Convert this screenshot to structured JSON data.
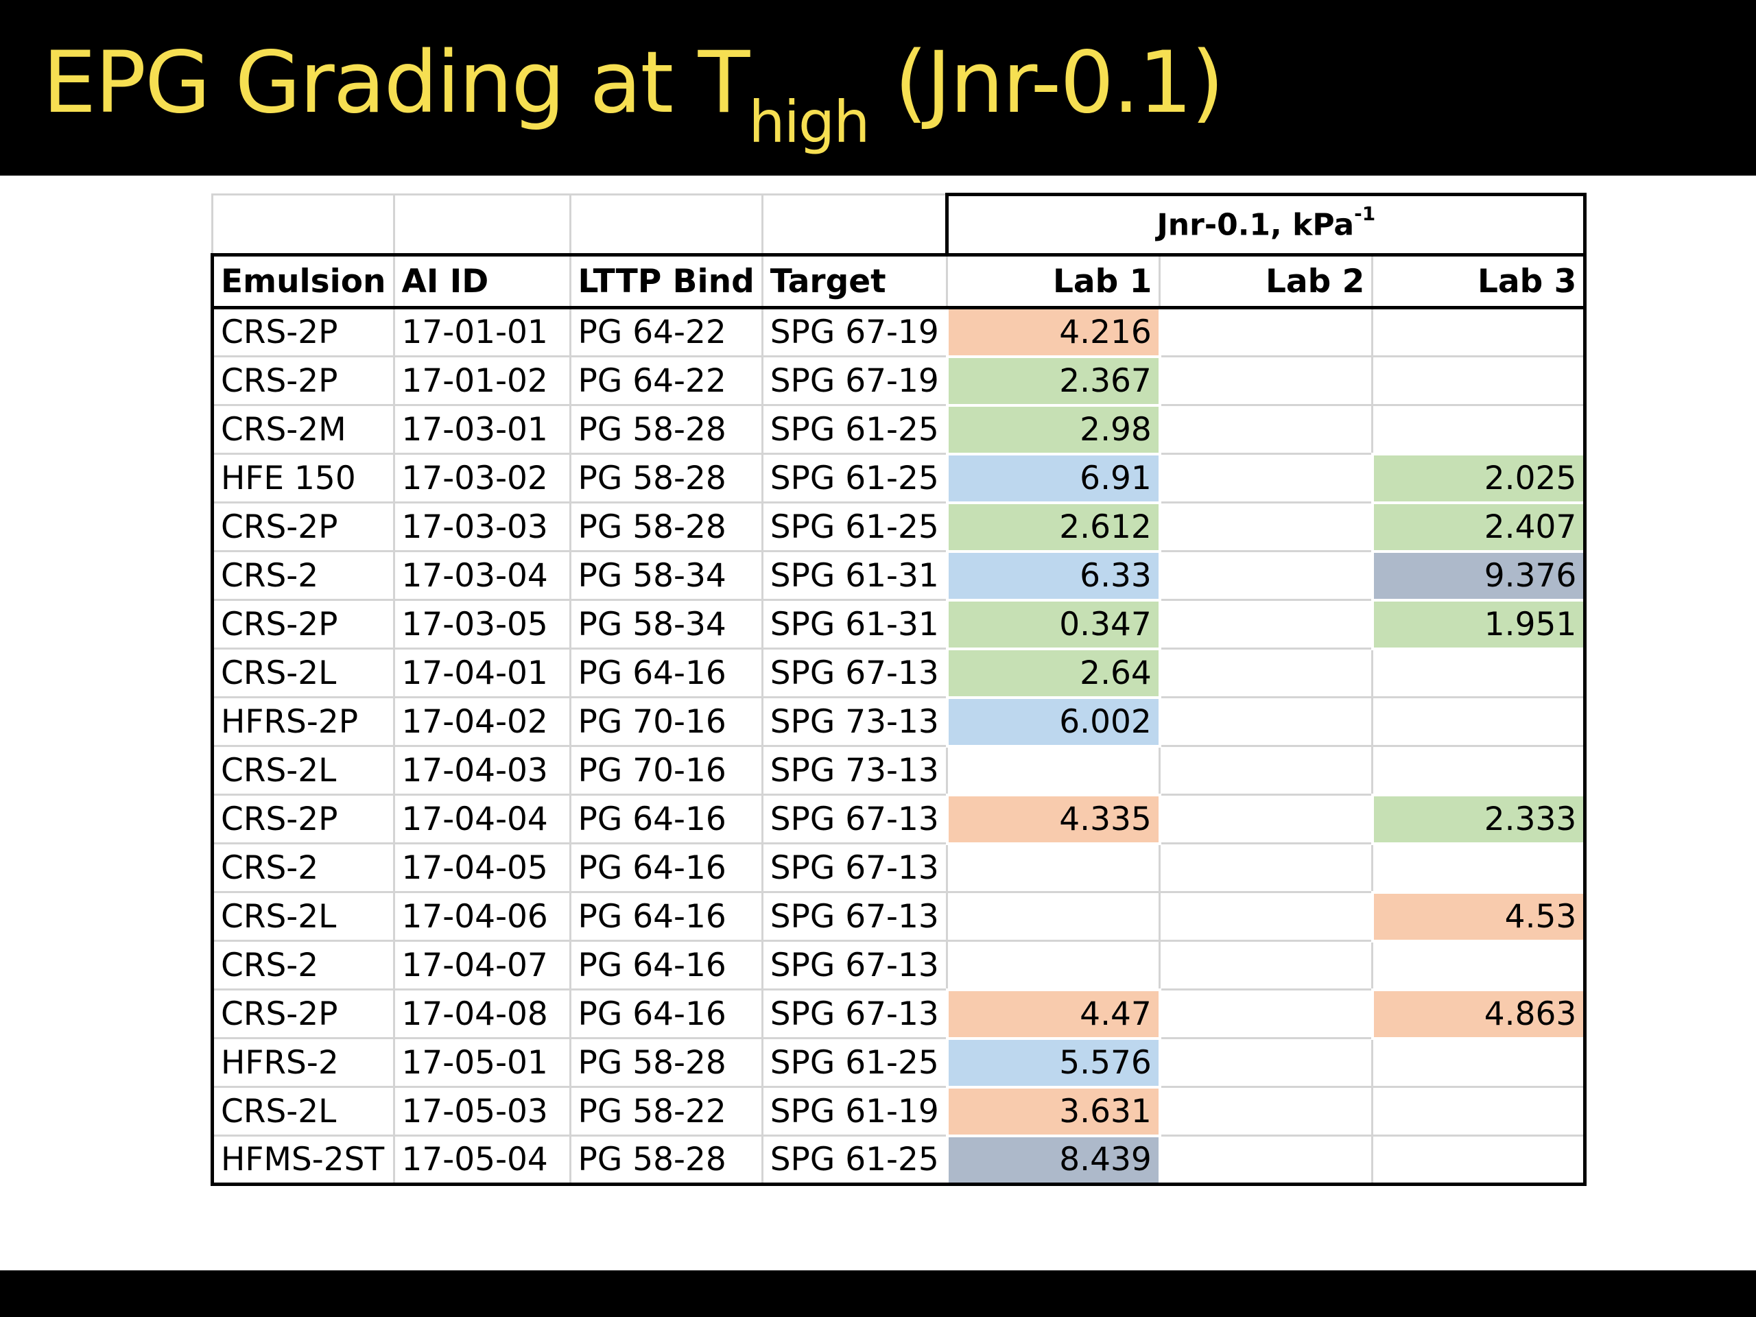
{
  "title": {
    "main": "EPG Grading at T",
    "subscript": "high",
    "suffix": " (Jnr-0.1)"
  },
  "table": {
    "group_header": "Jnr-0.1, kPa",
    "group_header_sup": "-1",
    "columns": [
      "Emulsion",
      "AI ID",
      "LTTP Bind",
      "Target",
      "Lab 1",
      "Lab 2",
      "Lab 3"
    ],
    "colors": {
      "orange": "#f8cbad",
      "green": "#c6e0b4",
      "blue": "#bdd7ee",
      "gray": "#adb9ca"
    },
    "rows": [
      {
        "emulsion": "CRS-2P",
        "ai_id": "17-01-01",
        "lttp": "PG 64-22",
        "target": "SPG 67-19",
        "lab1": "4.216",
        "lab1_color": "orange",
        "lab2": "",
        "lab2_color": "",
        "lab3": "",
        "lab3_color": ""
      },
      {
        "emulsion": "CRS-2P",
        "ai_id": "17-01-02",
        "lttp": "PG 64-22",
        "target": "SPG 67-19",
        "lab1": "2.367",
        "lab1_color": "green",
        "lab2": "",
        "lab2_color": "",
        "lab3": "",
        "lab3_color": ""
      },
      {
        "emulsion": "CRS-2M",
        "ai_id": "17-03-01",
        "lttp": "PG 58-28",
        "target": "SPG 61-25",
        "lab1": "2.98",
        "lab1_color": "green",
        "lab2": "",
        "lab2_color": "",
        "lab3": "",
        "lab3_color": ""
      },
      {
        "emulsion": "HFE 150",
        "ai_id": "17-03-02",
        "lttp": "PG 58-28",
        "target": "SPG 61-25",
        "lab1": "6.91",
        "lab1_color": "blue",
        "lab2": "",
        "lab2_color": "",
        "lab3": "2.025",
        "lab3_color": "green"
      },
      {
        "emulsion": "CRS-2P",
        "ai_id": "17-03-03",
        "lttp": "PG 58-28",
        "target": "SPG 61-25",
        "lab1": "2.612",
        "lab1_color": "green",
        "lab2": "",
        "lab2_color": "",
        "lab3": "2.407",
        "lab3_color": "green"
      },
      {
        "emulsion": "CRS-2",
        "ai_id": "17-03-04",
        "lttp": "PG 58-34",
        "target": "SPG 61-31",
        "lab1": "6.33",
        "lab1_color": "blue",
        "lab2": "",
        "lab2_color": "",
        "lab3": "9.376",
        "lab3_color": "gray"
      },
      {
        "emulsion": "CRS-2P",
        "ai_id": "17-03-05",
        "lttp": "PG 58-34",
        "target": "SPG 61-31",
        "lab1": "0.347",
        "lab1_color": "green",
        "lab2": "",
        "lab2_color": "",
        "lab3": "1.951",
        "lab3_color": "green"
      },
      {
        "emulsion": "CRS-2L",
        "ai_id": "17-04-01",
        "lttp": "PG 64-16",
        "target": "SPG 67-13",
        "lab1": "2.64",
        "lab1_color": "green",
        "lab2": "",
        "lab2_color": "",
        "lab3": "",
        "lab3_color": ""
      },
      {
        "emulsion": "HFRS-2P",
        "ai_id": "17-04-02",
        "lttp": "PG 70-16",
        "target": "SPG 73-13",
        "lab1": "6.002",
        "lab1_color": "blue",
        "lab2": "",
        "lab2_color": "",
        "lab3": "",
        "lab3_color": ""
      },
      {
        "emulsion": "CRS-2L",
        "ai_id": "17-04-03",
        "lttp": "PG 70-16",
        "target": "SPG 73-13",
        "lab1": "",
        "lab1_color": "",
        "lab2": "",
        "lab2_color": "",
        "lab3": "",
        "lab3_color": ""
      },
      {
        "emulsion": "CRS-2P",
        "ai_id": "17-04-04",
        "lttp": "PG 64-16",
        "target": "SPG 67-13",
        "lab1": "4.335",
        "lab1_color": "orange",
        "lab2": "",
        "lab2_color": "",
        "lab3": "2.333",
        "lab3_color": "green"
      },
      {
        "emulsion": "CRS-2",
        "ai_id": "17-04-05",
        "lttp": "PG 64-16",
        "target": "SPG 67-13",
        "lab1": "",
        "lab1_color": "",
        "lab2": "",
        "lab2_color": "",
        "lab3": "",
        "lab3_color": ""
      },
      {
        "emulsion": "CRS-2L",
        "ai_id": "17-04-06",
        "lttp": "PG 64-16",
        "target": "SPG 67-13",
        "lab1": "",
        "lab1_color": "",
        "lab2": "",
        "lab2_color": "",
        "lab3": "4.53",
        "lab3_color": "orange"
      },
      {
        "emulsion": "CRS-2",
        "ai_id": "17-04-07",
        "lttp": "PG 64-16",
        "target": "SPG 67-13",
        "lab1": "",
        "lab1_color": "",
        "lab2": "",
        "lab2_color": "",
        "lab3": "",
        "lab3_color": ""
      },
      {
        "emulsion": "CRS-2P",
        "ai_id": "17-04-08",
        "lttp": "PG 64-16",
        "target": "SPG 67-13",
        "lab1": "4.47",
        "lab1_color": "orange",
        "lab2": "",
        "lab2_color": "",
        "lab3": "4.863",
        "lab3_color": "orange"
      },
      {
        "emulsion": "HFRS-2",
        "ai_id": "17-05-01",
        "lttp": "PG 58-28",
        "target": "SPG 61-25",
        "lab1": "5.576",
        "lab1_color": "blue",
        "lab2": "",
        "lab2_color": "",
        "lab3": "",
        "lab3_color": ""
      },
      {
        "emulsion": "CRS-2L",
        "ai_id": "17-05-03",
        "lttp": "PG 58-22",
        "target": "SPG 61-19",
        "lab1": "3.631",
        "lab1_color": "orange",
        "lab2": "",
        "lab2_color": "",
        "lab3": "",
        "lab3_color": ""
      },
      {
        "emulsion": "HFMS-2ST",
        "ai_id": "17-05-04",
        "lttp": "PG 58-28",
        "target": "SPG 61-25",
        "lab1": "8.439",
        "lab1_color": "gray",
        "lab2": "",
        "lab2_color": "",
        "lab3": "",
        "lab3_color": ""
      }
    ]
  }
}
